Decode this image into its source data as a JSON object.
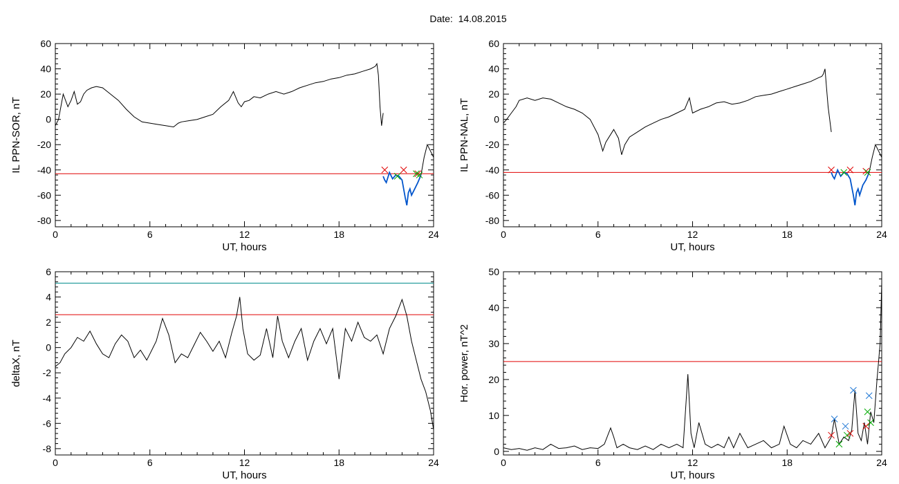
{
  "figure": {
    "title": "Date:  14.08.2015"
  },
  "chart_data": [
    {
      "id": "sor",
      "type": "line",
      "xlabel": "UT, hours",
      "ylabel": "IL PPN-SOR, nT",
      "xlim": [
        0,
        24
      ],
      "ylim": [
        -85,
        60
      ],
      "xticks": [
        0,
        6,
        12,
        18,
        24
      ],
      "yticks": [
        -80,
        -60,
        -40,
        -20,
        0,
        20,
        40,
        60
      ],
      "series": [
        {
          "color": "#000000",
          "x": [
            0,
            0.2,
            0.5,
            0.8,
            1.0,
            1.2,
            1.4,
            1.6,
            1.8,
            2.0,
            2.3,
            2.6,
            3.0,
            3.5,
            4.0,
            4.5,
            5.0,
            5.5,
            6.0,
            6.5,
            7.0,
            7.5,
            7.8,
            8.0,
            8.5,
            9.0,
            9.5,
            10.0,
            10.5,
            11.0,
            11.3,
            11.6,
            11.8,
            12.0,
            12.3,
            12.6,
            13.0,
            13.5,
            14.0,
            14.5,
            15.0,
            15.5,
            16.0,
            16.5,
            17.0,
            17.5,
            18.0,
            18.5,
            19.0,
            19.5,
            20.0,
            20.3,
            20.4,
            20.5,
            20.6,
            20.7,
            20.8
          ],
          "y": [
            -5,
            0,
            20,
            10,
            15,
            22,
            12,
            14,
            20,
            23,
            25,
            26,
            25,
            20,
            15,
            8,
            2,
            -2,
            -3,
            -4,
            -5,
            -6,
            -3,
            -2,
            -1,
            0,
            2,
            4,
            10,
            15,
            22,
            13,
            10,
            14,
            15,
            18,
            17,
            20,
            22,
            20,
            22,
            25,
            27,
            29,
            30,
            32,
            33,
            35,
            36,
            38,
            40,
            42,
            44,
            35,
            10,
            -5,
            5
          ]
        },
        {
          "color": "#0055cc",
          "x": [
            20.8,
            20.9,
            21.0,
            21.2,
            21.4,
            21.6,
            21.8,
            22.0,
            22.2,
            22.3,
            22.4,
            22.5,
            22.6,
            22.8,
            23.0,
            23.2
          ],
          "y": [
            -45,
            -48,
            -50,
            -42,
            -47,
            -44,
            -45,
            -48,
            -62,
            -68,
            -58,
            -55,
            -60,
            -55,
            -50,
            -44
          ]
        },
        {
          "color": "#000000",
          "x": [
            23.2,
            23.4,
            23.6,
            23.8,
            24.0
          ],
          "y": [
            -44,
            -30,
            -20,
            -25,
            -30
          ]
        }
      ],
      "hlines": [
        {
          "y": -43,
          "color": "#e00000"
        }
      ],
      "markers": [
        {
          "x": 20.9,
          "y": -40,
          "color": "#e00000"
        },
        {
          "x": 21.7,
          "y": -45,
          "color": "#00aa00"
        },
        {
          "x": 22.1,
          "y": -40,
          "color": "#e00000"
        },
        {
          "x": 22.9,
          "y": -43,
          "color": "#00aa00"
        },
        {
          "x": 23.0,
          "y": -43,
          "color": "#e00000"
        },
        {
          "x": 23.1,
          "y": -44,
          "color": "#00aa00"
        }
      ]
    },
    {
      "id": "nal",
      "type": "line",
      "xlabel": "UT, hours",
      "ylabel": "IL PPN-NAL, nT",
      "xlim": [
        0,
        24
      ],
      "ylim": [
        -85,
        60
      ],
      "xticks": [
        0,
        6,
        12,
        18,
        24
      ],
      "yticks": [
        -80,
        -60,
        -40,
        -20,
        0,
        20,
        40,
        60
      ],
      "series": [
        {
          "color": "#000000",
          "x": [
            0,
            0.2,
            0.5,
            0.8,
            1.0,
            1.5,
            2.0,
            2.5,
            3.0,
            3.5,
            4.0,
            4.5,
            5.0,
            5.5,
            6.0,
            6.3,
            6.5,
            7.0,
            7.3,
            7.5,
            7.7,
            8.0,
            8.5,
            9.0,
            9.5,
            10.0,
            10.5,
            11.0,
            11.5,
            11.8,
            12.0,
            12.5,
            13.0,
            13.5,
            14.0,
            14.5,
            15.0,
            15.5,
            16.0,
            16.5,
            17.0,
            17.5,
            18.0,
            18.5,
            19.0,
            19.5,
            20.0,
            20.2,
            20.3,
            20.4,
            20.5,
            20.6,
            20.7,
            20.8
          ],
          "y": [
            -3,
            0,
            5,
            10,
            15,
            17,
            15,
            17,
            16,
            13,
            10,
            8,
            5,
            0,
            -12,
            -25,
            -18,
            -8,
            -15,
            -28,
            -20,
            -14,
            -10,
            -6,
            -3,
            0,
            2,
            5,
            8,
            17,
            5,
            8,
            10,
            13,
            14,
            12,
            13,
            15,
            18,
            19,
            20,
            22,
            24,
            26,
            28,
            30,
            33,
            34,
            36,
            40,
            25,
            10,
            0,
            -10
          ]
        },
        {
          "color": "#0055cc",
          "x": [
            20.8,
            20.9,
            21.0,
            21.2,
            21.4,
            21.6,
            21.8,
            22.0,
            22.2,
            22.3,
            22.4,
            22.5,
            22.6,
            22.8,
            23.0,
            23.2
          ],
          "y": [
            -42,
            -45,
            -47,
            -40,
            -45,
            -42,
            -43,
            -47,
            -60,
            -68,
            -58,
            -55,
            -60,
            -52,
            -48,
            -42
          ]
        },
        {
          "color": "#000000",
          "x": [
            23.2,
            23.4,
            23.6,
            23.8,
            24.0
          ],
          "y": [
            -42,
            -30,
            -20,
            -25,
            -30
          ]
        }
      ],
      "hlines": [
        {
          "y": -42,
          "color": "#e00000"
        }
      ],
      "markers": [
        {
          "x": 20.8,
          "y": -40,
          "color": "#e00000"
        },
        {
          "x": 21.6,
          "y": -42,
          "color": "#00aa00"
        },
        {
          "x": 22.0,
          "y": -40,
          "color": "#e00000"
        },
        {
          "x": 23.0,
          "y": -41,
          "color": "#e00000"
        },
        {
          "x": 23.1,
          "y": -42,
          "color": "#00aa00"
        }
      ]
    },
    {
      "id": "deltax",
      "type": "line",
      "xlabel": "UT, hours",
      "ylabel": "deltaX, nT",
      "xlim": [
        0,
        24
      ],
      "ylim": [
        -8.5,
        6
      ],
      "xticks": [
        0,
        6,
        12,
        18,
        24
      ],
      "yticks": [
        -8,
        -6,
        -4,
        -2,
        0,
        2,
        4,
        6
      ],
      "series": [
        {
          "color": "#000000",
          "x": [
            0,
            0.3,
            0.6,
            1.0,
            1.4,
            1.8,
            2.2,
            2.6,
            3.0,
            3.4,
            3.8,
            4.2,
            4.6,
            5.0,
            5.4,
            5.8,
            6.0,
            6.4,
            6.8,
            7.2,
            7.6,
            8.0,
            8.4,
            8.8,
            9.2,
            9.6,
            10.0,
            10.4,
            10.8,
            11.2,
            11.5,
            11.7,
            11.9,
            12.2,
            12.6,
            13.0,
            13.4,
            13.8,
            14.1,
            14.4,
            14.8,
            15.2,
            15.6,
            16.0,
            16.4,
            16.8,
            17.2,
            17.6,
            18.0,
            18.4,
            18.8,
            19.2,
            19.6,
            20.0,
            20.4,
            20.8,
            21.2,
            21.6,
            22.0,
            22.3,
            22.6,
            22.9,
            23.2,
            23.5,
            23.8,
            24.0
          ],
          "y": [
            -1.5,
            -1.2,
            -0.5,
            0,
            0.8,
            0.5,
            1.3,
            0.3,
            -0.5,
            -0.8,
            0.3,
            1,
            0.5,
            -0.8,
            -0.2,
            -1,
            -0.5,
            0.5,
            2.3,
            1,
            -1.2,
            -0.5,
            -0.8,
            0.2,
            1.2,
            0.5,
            -0.3,
            0.5,
            -0.8,
            1.2,
            2.5,
            4.0,
            1.5,
            -0.5,
            -1,
            -0.6,
            1.5,
            -0.8,
            2.5,
            0.5,
            -0.8,
            0.5,
            1.5,
            -1,
            0.5,
            1.5,
            0.3,
            1.5,
            -2.5,
            1.5,
            0.5,
            2.0,
            0.8,
            0.5,
            1.0,
            -0.5,
            1.5,
            2.5,
            3.8,
            2.5,
            0.5,
            -1,
            -2.5,
            -3.5,
            -5,
            -6.5
          ]
        }
      ],
      "hlines": [
        {
          "y": 5.1,
          "color": "#008b8b"
        },
        {
          "y": 2.6,
          "color": "#e00000"
        }
      ],
      "markers": []
    },
    {
      "id": "horpower",
      "type": "line",
      "xlabel": "UT, hours",
      "ylabel": "Hor. power, nT^2",
      "xlim": [
        0,
        24
      ],
      "ylim": [
        -1,
        50
      ],
      "xticks": [
        0,
        6,
        12,
        18,
        24
      ],
      "yticks": [
        0,
        10,
        20,
        30,
        40,
        50
      ],
      "series": [
        {
          "color": "#000000",
          "x": [
            0,
            0.5,
            1.0,
            1.5,
            2.0,
            2.5,
            3.0,
            3.5,
            4.0,
            4.5,
            5.0,
            5.5,
            6.0,
            6.4,
            6.8,
            7.0,
            7.2,
            7.6,
            8.0,
            8.5,
            9.0,
            9.5,
            10.0,
            10.5,
            11.0,
            11.4,
            11.7,
            11.9,
            12.1,
            12.4,
            12.8,
            13.2,
            13.6,
            14.0,
            14.3,
            14.6,
            15.0,
            15.5,
            16.0,
            16.5,
            17.0,
            17.5,
            17.8,
            18.2,
            18.6,
            19.0,
            19.5,
            20.0,
            20.4,
            20.8,
            21.0,
            21.3,
            21.6,
            21.9,
            22.1,
            22.3,
            22.5,
            22.7,
            22.9,
            23.1,
            23.3,
            23.5,
            23.7,
            23.9,
            24.0
          ],
          "y": [
            1,
            0.5,
            0.8,
            0.3,
            1,
            0.5,
            2,
            0.8,
            1,
            1.5,
            0.5,
            1,
            0.8,
            2,
            6.5,
            4,
            1,
            2,
            1,
            0.5,
            1.5,
            0.5,
            2,
            1,
            2,
            1,
            21.5,
            5,
            1,
            8,
            2,
            1,
            2,
            1,
            4,
            1,
            5,
            1,
            2,
            3,
            1,
            2,
            7,
            2,
            1,
            3,
            2,
            5,
            1,
            4,
            9,
            2,
            4,
            3,
            6,
            17,
            5,
            3,
            8,
            2,
            11,
            8,
            20,
            30,
            47
          ]
        }
      ],
      "hlines": [
        {
          "y": 25,
          "color": "#e00000"
        }
      ],
      "markers": [
        {
          "x": 20.8,
          "y": 4.5,
          "color": "#e00000"
        },
        {
          "x": 21.0,
          "y": 9.0,
          "color": "#1f77d4"
        },
        {
          "x": 21.3,
          "y": 2.0,
          "color": "#00aa00"
        },
        {
          "x": 21.7,
          "y": 7.0,
          "color": "#1f77d4"
        },
        {
          "x": 21.8,
          "y": 4.5,
          "color": "#00aa00"
        },
        {
          "x": 22.0,
          "y": 5.0,
          "color": "#e00000"
        },
        {
          "x": 22.2,
          "y": 17.0,
          "color": "#1f77d4"
        },
        {
          "x": 23.0,
          "y": 7.0,
          "color": "#e00000"
        },
        {
          "x": 23.1,
          "y": 11.0,
          "color": "#00aa00"
        },
        {
          "x": 23.2,
          "y": 15.5,
          "color": "#1f77d4"
        },
        {
          "x": 23.3,
          "y": 8.0,
          "color": "#00aa00"
        }
      ]
    }
  ]
}
